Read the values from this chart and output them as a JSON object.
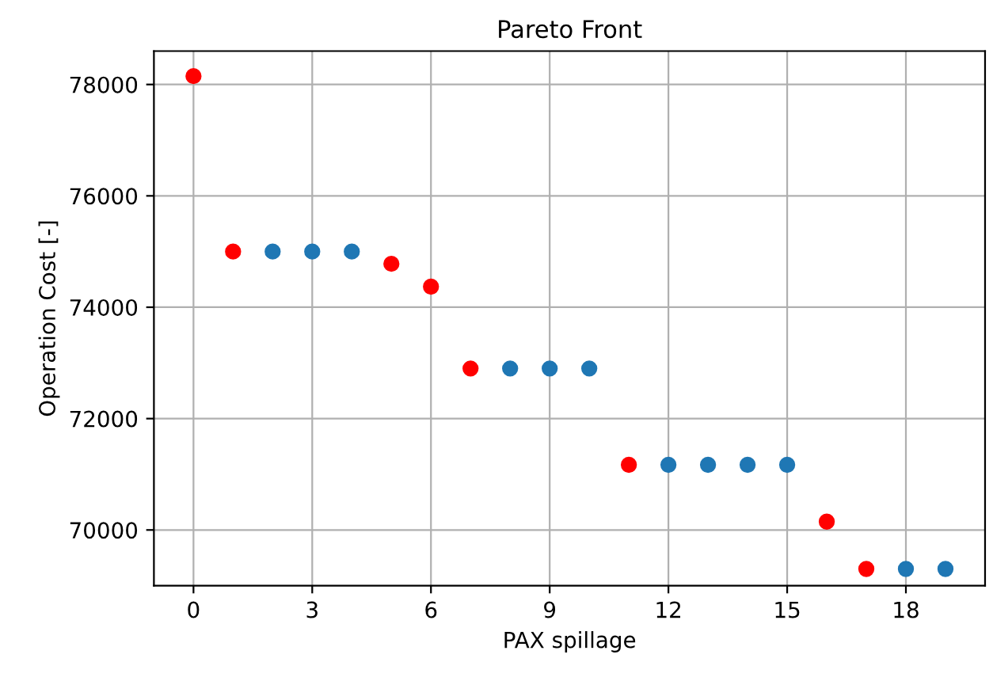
{
  "chart_data": {
    "type": "scatter",
    "title": "Pareto Front",
    "xlabel": "PAX spillage",
    "ylabel": "Operation Cost [-]",
    "series": [
      {
        "color": "#1f77b4",
        "x": [
          2,
          3,
          4,
          8,
          9,
          10,
          12,
          13,
          14,
          15,
          18,
          19
        ],
        "values": [
          75000,
          75000,
          75000,
          72900,
          72900,
          72900,
          71170,
          71170,
          71170,
          71170,
          69300,
          69300
        ]
      },
      {
        "color": "#ff0000",
        "x": [
          0,
          1,
          5,
          6,
          7,
          11,
          16,
          17
        ],
        "values": [
          78150,
          75000,
          74780,
          74370,
          72900,
          71170,
          70150,
          69300
        ]
      }
    ],
    "xlim": [
      -1,
      20
    ],
    "xticks": [
      0,
      3,
      6,
      9,
      12,
      15,
      18
    ],
    "ylim": [
      69000,
      78600
    ],
    "yticks": [
      70000,
      72000,
      74000,
      76000,
      78000
    ],
    "grid": true,
    "marker": "circle"
  }
}
